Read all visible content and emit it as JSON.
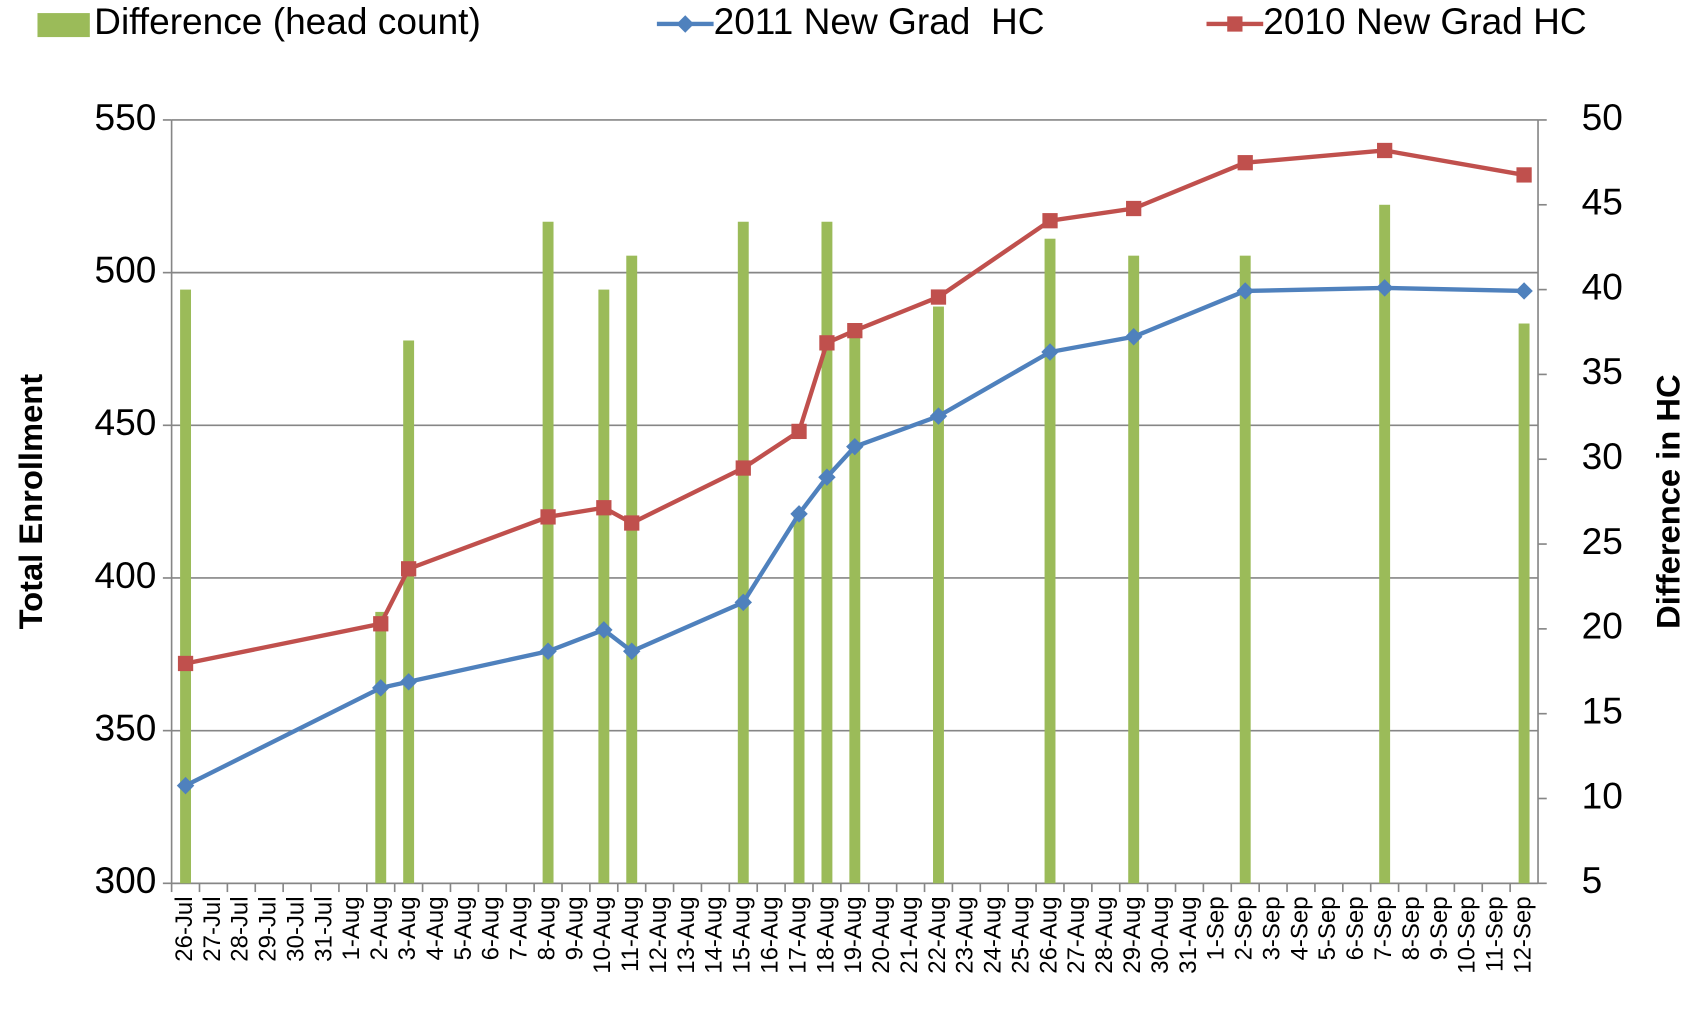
{
  "chart_data": {
    "type": "combo",
    "ylabel": "Total Enrollment",
    "y2label": "Difference in HC",
    "categories": [
      "26-Jul",
      "27-Jul",
      "28-Jul",
      "29-Jul",
      "30-Jul",
      "31-Jul",
      "1-Aug",
      "2-Aug",
      "3-Aug",
      "4-Aug",
      "5-Aug",
      "6-Aug",
      "7-Aug",
      "8-Aug",
      "9-Aug",
      "10-Aug",
      "11-Aug",
      "12-Aug",
      "13-Aug",
      "14-Aug",
      "15-Aug",
      "16-Aug",
      "17-Aug",
      "18-Aug",
      "19-Aug",
      "20-Aug",
      "21-Aug",
      "22-Aug",
      "23-Aug",
      "24-Aug",
      "25-Aug",
      "26-Aug",
      "27-Aug",
      "28-Aug",
      "29-Aug",
      "30-Aug",
      "31-Aug",
      "1-Sep",
      "2-Sep",
      "3-Sep",
      "4-Sep",
      "5-Sep",
      "6-Sep",
      "7-Sep",
      "8-Sep",
      "9-Sep",
      "10-Sep",
      "11-Sep",
      "12-Sep"
    ],
    "x": [
      "26-Jul",
      "2-Aug",
      "3-Aug",
      "8-Aug",
      "10-Aug",
      "11-Aug",
      "15-Aug",
      "17-Aug",
      "18-Aug",
      "19-Aug",
      "22-Aug",
      "26-Aug",
      "29-Aug",
      "2-Sep",
      "7-Sep",
      "12-Sep"
    ],
    "series": [
      {
        "name": "Difference (head count)",
        "type": "bar",
        "axis": "y2",
        "color": "#9bbb59",
        "values": [
          40,
          21,
          37,
          44,
          40,
          42,
          44,
          27,
          44,
          38,
          39,
          43,
          42,
          42,
          45,
          38
        ]
      },
      {
        "name": "2011 New Grad  HC",
        "type": "line",
        "marker": "diamond",
        "color": "#4f81bd",
        "values": [
          332,
          364,
          366,
          376,
          383,
          376,
          392,
          421,
          433,
          443,
          453,
          474,
          479,
          494,
          495,
          494
        ]
      },
      {
        "name": "2010 New Grad HC",
        "type": "line",
        "marker": "square",
        "color": "#c0504d",
        "values": [
          372,
          385,
          403,
          420,
          423,
          418,
          436,
          448,
          477,
          481,
          492,
          517,
          521,
          536,
          540,
          532
        ]
      }
    ],
    "ylim": [
      300,
      550
    ],
    "yticks": [
      300,
      350,
      400,
      450,
      500,
      550
    ],
    "y2lim": [
      5,
      50
    ],
    "y2ticks": [
      5,
      10,
      15,
      20,
      25,
      30,
      35,
      40,
      45,
      50
    ],
    "grid": true,
    "legend": "top"
  }
}
